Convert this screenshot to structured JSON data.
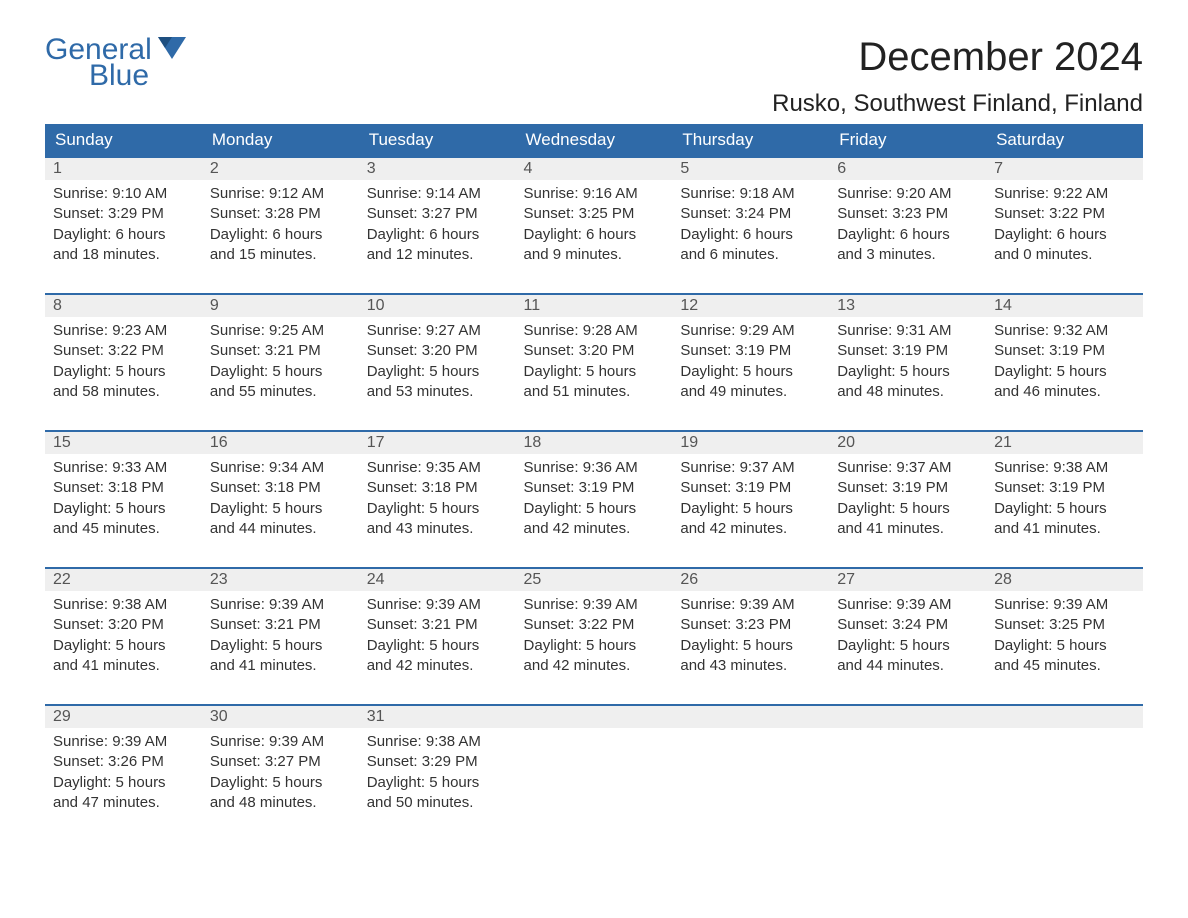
{
  "logo": {
    "text1": "General",
    "text2": "Blue",
    "accent_color": "#2f6aa8"
  },
  "header": {
    "month_title": "December 2024",
    "location": "Rusko, Southwest Finland, Finland"
  },
  "calendar": {
    "day_headers": [
      "Sunday",
      "Monday",
      "Tuesday",
      "Wednesday",
      "Thursday",
      "Friday",
      "Saturday"
    ],
    "header_bg": "#2f6aa8",
    "header_fg": "#ffffff",
    "row_accent": "#2f6aa8",
    "daynum_bg": "#efefef",
    "weeks": [
      [
        {
          "day": "1",
          "sunrise": "Sunrise: 9:10 AM",
          "sunset": "Sunset: 3:29 PM",
          "dl1": "Daylight: 6 hours",
          "dl2": "and 18 minutes."
        },
        {
          "day": "2",
          "sunrise": "Sunrise: 9:12 AM",
          "sunset": "Sunset: 3:28 PM",
          "dl1": "Daylight: 6 hours",
          "dl2": "and 15 minutes."
        },
        {
          "day": "3",
          "sunrise": "Sunrise: 9:14 AM",
          "sunset": "Sunset: 3:27 PM",
          "dl1": "Daylight: 6 hours",
          "dl2": "and 12 minutes."
        },
        {
          "day": "4",
          "sunrise": "Sunrise: 9:16 AM",
          "sunset": "Sunset: 3:25 PM",
          "dl1": "Daylight: 6 hours",
          "dl2": "and 9 minutes."
        },
        {
          "day": "5",
          "sunrise": "Sunrise: 9:18 AM",
          "sunset": "Sunset: 3:24 PM",
          "dl1": "Daylight: 6 hours",
          "dl2": "and 6 minutes."
        },
        {
          "day": "6",
          "sunrise": "Sunrise: 9:20 AM",
          "sunset": "Sunset: 3:23 PM",
          "dl1": "Daylight: 6 hours",
          "dl2": "and 3 minutes."
        },
        {
          "day": "7",
          "sunrise": "Sunrise: 9:22 AM",
          "sunset": "Sunset: 3:22 PM",
          "dl1": "Daylight: 6 hours",
          "dl2": "and 0 minutes."
        }
      ],
      [
        {
          "day": "8",
          "sunrise": "Sunrise: 9:23 AM",
          "sunset": "Sunset: 3:22 PM",
          "dl1": "Daylight: 5 hours",
          "dl2": "and 58 minutes."
        },
        {
          "day": "9",
          "sunrise": "Sunrise: 9:25 AM",
          "sunset": "Sunset: 3:21 PM",
          "dl1": "Daylight: 5 hours",
          "dl2": "and 55 minutes."
        },
        {
          "day": "10",
          "sunrise": "Sunrise: 9:27 AM",
          "sunset": "Sunset: 3:20 PM",
          "dl1": "Daylight: 5 hours",
          "dl2": "and 53 minutes."
        },
        {
          "day": "11",
          "sunrise": "Sunrise: 9:28 AM",
          "sunset": "Sunset: 3:20 PM",
          "dl1": "Daylight: 5 hours",
          "dl2": "and 51 minutes."
        },
        {
          "day": "12",
          "sunrise": "Sunrise: 9:29 AM",
          "sunset": "Sunset: 3:19 PM",
          "dl1": "Daylight: 5 hours",
          "dl2": "and 49 minutes."
        },
        {
          "day": "13",
          "sunrise": "Sunrise: 9:31 AM",
          "sunset": "Sunset: 3:19 PM",
          "dl1": "Daylight: 5 hours",
          "dl2": "and 48 minutes."
        },
        {
          "day": "14",
          "sunrise": "Sunrise: 9:32 AM",
          "sunset": "Sunset: 3:19 PM",
          "dl1": "Daylight: 5 hours",
          "dl2": "and 46 minutes."
        }
      ],
      [
        {
          "day": "15",
          "sunrise": "Sunrise: 9:33 AM",
          "sunset": "Sunset: 3:18 PM",
          "dl1": "Daylight: 5 hours",
          "dl2": "and 45 minutes."
        },
        {
          "day": "16",
          "sunrise": "Sunrise: 9:34 AM",
          "sunset": "Sunset: 3:18 PM",
          "dl1": "Daylight: 5 hours",
          "dl2": "and 44 minutes."
        },
        {
          "day": "17",
          "sunrise": "Sunrise: 9:35 AM",
          "sunset": "Sunset: 3:18 PM",
          "dl1": "Daylight: 5 hours",
          "dl2": "and 43 minutes."
        },
        {
          "day": "18",
          "sunrise": "Sunrise: 9:36 AM",
          "sunset": "Sunset: 3:19 PM",
          "dl1": "Daylight: 5 hours",
          "dl2": "and 42 minutes."
        },
        {
          "day": "19",
          "sunrise": "Sunrise: 9:37 AM",
          "sunset": "Sunset: 3:19 PM",
          "dl1": "Daylight: 5 hours",
          "dl2": "and 42 minutes."
        },
        {
          "day": "20",
          "sunrise": "Sunrise: 9:37 AM",
          "sunset": "Sunset: 3:19 PM",
          "dl1": "Daylight: 5 hours",
          "dl2": "and 41 minutes."
        },
        {
          "day": "21",
          "sunrise": "Sunrise: 9:38 AM",
          "sunset": "Sunset: 3:19 PM",
          "dl1": "Daylight: 5 hours",
          "dl2": "and 41 minutes."
        }
      ],
      [
        {
          "day": "22",
          "sunrise": "Sunrise: 9:38 AM",
          "sunset": "Sunset: 3:20 PM",
          "dl1": "Daylight: 5 hours",
          "dl2": "and 41 minutes."
        },
        {
          "day": "23",
          "sunrise": "Sunrise: 9:39 AM",
          "sunset": "Sunset: 3:21 PM",
          "dl1": "Daylight: 5 hours",
          "dl2": "and 41 minutes."
        },
        {
          "day": "24",
          "sunrise": "Sunrise: 9:39 AM",
          "sunset": "Sunset: 3:21 PM",
          "dl1": "Daylight: 5 hours",
          "dl2": "and 42 minutes."
        },
        {
          "day": "25",
          "sunrise": "Sunrise: 9:39 AM",
          "sunset": "Sunset: 3:22 PM",
          "dl1": "Daylight: 5 hours",
          "dl2": "and 42 minutes."
        },
        {
          "day": "26",
          "sunrise": "Sunrise: 9:39 AM",
          "sunset": "Sunset: 3:23 PM",
          "dl1": "Daylight: 5 hours",
          "dl2": "and 43 minutes."
        },
        {
          "day": "27",
          "sunrise": "Sunrise: 9:39 AM",
          "sunset": "Sunset: 3:24 PM",
          "dl1": "Daylight: 5 hours",
          "dl2": "and 44 minutes."
        },
        {
          "day": "28",
          "sunrise": "Sunrise: 9:39 AM",
          "sunset": "Sunset: 3:25 PM",
          "dl1": "Daylight: 5 hours",
          "dl2": "and 45 minutes."
        }
      ],
      [
        {
          "day": "29",
          "sunrise": "Sunrise: 9:39 AM",
          "sunset": "Sunset: 3:26 PM",
          "dl1": "Daylight: 5 hours",
          "dl2": "and 47 minutes."
        },
        {
          "day": "30",
          "sunrise": "Sunrise: 9:39 AM",
          "sunset": "Sunset: 3:27 PM",
          "dl1": "Daylight: 5 hours",
          "dl2": "and 48 minutes."
        },
        {
          "day": "31",
          "sunrise": "Sunrise: 9:38 AM",
          "sunset": "Sunset: 3:29 PM",
          "dl1": "Daylight: 5 hours",
          "dl2": "and 50 minutes."
        },
        {
          "day": "",
          "sunrise": "",
          "sunset": "",
          "dl1": "",
          "dl2": ""
        },
        {
          "day": "",
          "sunrise": "",
          "sunset": "",
          "dl1": "",
          "dl2": ""
        },
        {
          "day": "",
          "sunrise": "",
          "sunset": "",
          "dl1": "",
          "dl2": ""
        },
        {
          "day": "",
          "sunrise": "",
          "sunset": "",
          "dl1": "",
          "dl2": ""
        }
      ]
    ]
  }
}
